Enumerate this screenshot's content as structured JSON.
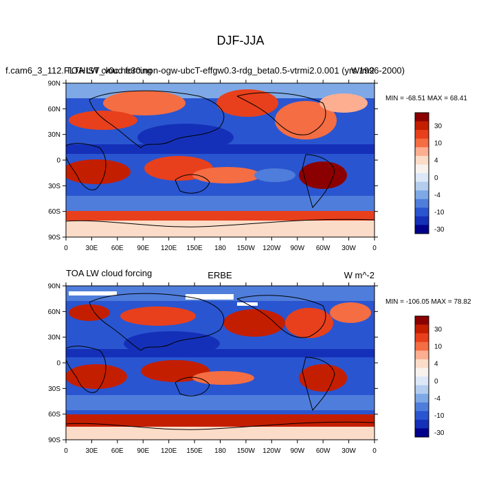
{
  "figure": {
    "title": "DJF-JJA"
  },
  "chart_data": [
    {
      "type": "heatmap",
      "title_left": "f.cam6_3_112.FLTHIST_v0c.ne30.non-ogw-ubcT-effgw0.3-rdg_beta0.5-vtrmi2.0.001 (yrs 1996-2000)",
      "title_left_overlay": "TOA LW cloud forcing",
      "title_right": "W/m2",
      "stats": "MIN = -68.51 MAX =  68.41",
      "y_tick_labels": [
        "90N",
        "60N",
        "30N",
        "0",
        "30S",
        "60S",
        "90S"
      ],
      "x_tick_labels": [
        "0",
        "30E",
        "60E",
        "90E",
        "120E",
        "150E",
        "180",
        "150W",
        "120W",
        "90W",
        "60W",
        "30W",
        "0"
      ],
      "xlim": [
        0,
        360
      ],
      "ylim": [
        -90,
        90
      ],
      "colorbar_labels": [
        "30",
        "10",
        "4",
        "0",
        "-4",
        "-10",
        "-30"
      ],
      "colorbar_colors": [
        "#8b0000",
        "#c41e00",
        "#e8401c",
        "#f46d43",
        "#fdae91",
        "#fbdcc8",
        "#f7f2ee",
        "#dce8f7",
        "#b4cdee",
        "#7ea9e6",
        "#4f7ddb",
        "#2a55d0",
        "#1530b8",
        "#00008b"
      ]
    },
    {
      "type": "heatmap",
      "title_left": "TOA LW cloud forcing",
      "title_center": "ERBE",
      "title_right": "W m^-2",
      "stats": "MIN = -106.05 MAX =  78.82",
      "y_tick_labels": [
        "90N",
        "60N",
        "30N",
        "0",
        "30S",
        "60S",
        "90S"
      ],
      "x_tick_labels": [
        "0",
        "30E",
        "60E",
        "90E",
        "120E",
        "150E",
        "180",
        "150W",
        "120W",
        "90W",
        "60W",
        "30W",
        "0"
      ],
      "xlim": [
        0,
        360
      ],
      "ylim": [
        -90,
        90
      ],
      "colorbar_labels": [
        "30",
        "10",
        "4",
        "0",
        "-4",
        "-10",
        "-30"
      ],
      "colorbar_colors": [
        "#8b0000",
        "#c41e00",
        "#e8401c",
        "#f46d43",
        "#fdae91",
        "#fbdcc8",
        "#f7f2ee",
        "#dce8f7",
        "#b4cdee",
        "#7ea9e6",
        "#4f7ddb",
        "#2a55d0",
        "#1530b8",
        "#00008b"
      ]
    }
  ]
}
